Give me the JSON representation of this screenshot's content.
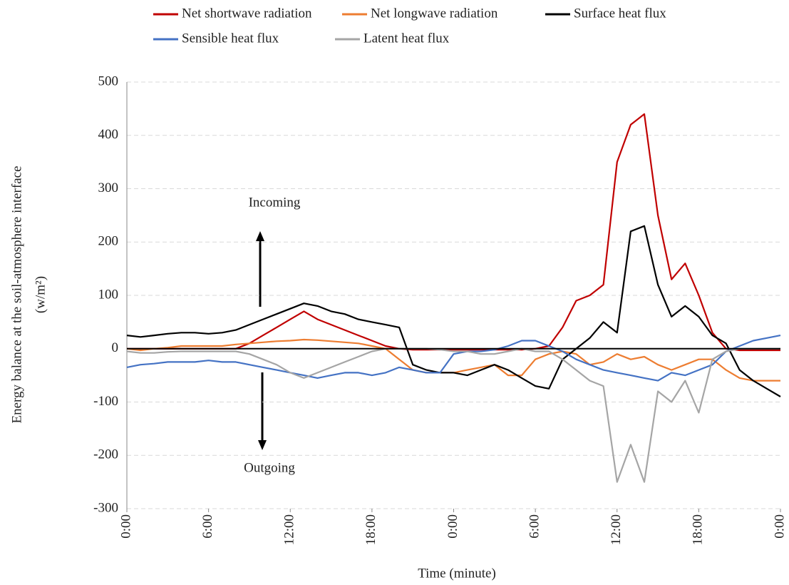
{
  "chart_data": {
    "type": "line",
    "x_label": "Time (minute)",
    "y_label": "Energy balance at the soil-atmosphere interface",
    "y_unit": "(w/m²)",
    "annotations": [
      "Incoming",
      "Outgoing"
    ],
    "x": [
      0,
      1,
      2,
      3,
      4,
      5,
      6,
      7,
      8,
      9,
      10,
      11,
      12,
      13,
      14,
      15,
      16,
      17,
      18,
      19,
      20,
      21,
      22,
      23,
      24,
      25,
      26,
      27,
      28,
      29,
      30,
      31,
      32,
      33,
      34,
      35,
      36,
      37,
      38,
      39,
      40,
      41,
      42,
      43,
      44,
      45,
      46,
      47,
      48
    ],
    "xlim": [
      0,
      48
    ],
    "xticks": [
      {
        "value": 0,
        "label": "0:00"
      },
      {
        "value": 6,
        "label": "6:00"
      },
      {
        "value": 12,
        "label": "12:00"
      },
      {
        "value": 18,
        "label": "18:00"
      },
      {
        "value": 24,
        "label": "0:00"
      },
      {
        "value": 30,
        "label": "6:00"
      },
      {
        "value": 36,
        "label": "12:00"
      },
      {
        "value": 42,
        "label": "18:00"
      },
      {
        "value": 48,
        "label": "0:00"
      }
    ],
    "ylim": [
      -300,
      500
    ],
    "yticks": [
      -300,
      -200,
      -100,
      0,
      100,
      200,
      300,
      400,
      500
    ],
    "grid": true,
    "series": [
      {
        "name": "Net shortwave radiation",
        "color": "#c00000",
        "values": [
          0,
          0,
          0,
          0,
          0,
          0,
          0,
          0,
          0,
          10,
          25,
          40,
          55,
          70,
          55,
          45,
          35,
          25,
          15,
          5,
          0,
          -2,
          -2,
          -2,
          -2,
          -2,
          -2,
          -2,
          -2,
          -2,
          0,
          5,
          40,
          90,
          100,
          120,
          350,
          420,
          440,
          250,
          130,
          160,
          100,
          30,
          0,
          -3,
          -3,
          -3,
          -3
        ]
      },
      {
        "name": "Net longwave radiation",
        "color": "#ed7d31",
        "values": [
          0,
          -3,
          0,
          2,
          5,
          5,
          5,
          5,
          8,
          10,
          12,
          14,
          15,
          17,
          16,
          14,
          12,
          10,
          5,
          0,
          -20,
          -40,
          -45,
          -45,
          -45,
          -40,
          -35,
          -30,
          -50,
          -50,
          -20,
          -10,
          -5,
          -10,
          -30,
          -25,
          -10,
          -20,
          -15,
          -30,
          -40,
          -30,
          -20,
          -20,
          -40,
          -55,
          -60,
          -60,
          -60
        ]
      },
      {
        "name": "Surface heat flux",
        "color": "#000000",
        "values": [
          25,
          22,
          25,
          28,
          30,
          30,
          28,
          30,
          35,
          45,
          55,
          65,
          75,
          85,
          80,
          70,
          65,
          55,
          50,
          45,
          40,
          -30,
          -40,
          -45,
          -45,
          -50,
          -40,
          -30,
          -40,
          -55,
          -70,
          -75,
          -20,
          0,
          20,
          50,
          30,
          220,
          230,
          120,
          60,
          80,
          60,
          25,
          10,
          -40,
          -60,
          -75,
          -90
        ]
      },
      {
        "name": "Sensible heat flux",
        "color": "#4472c4",
        "values": [
          -35,
          -30,
          -28,
          -25,
          -25,
          -25,
          -22,
          -25,
          -25,
          -30,
          -35,
          -40,
          -45,
          -50,
          -55,
          -50,
          -45,
          -45,
          -50,
          -45,
          -35,
          -40,
          -45,
          -45,
          -10,
          -5,
          -5,
          -2,
          5,
          15,
          15,
          5,
          -5,
          -20,
          -30,
          -40,
          -45,
          -50,
          -55,
          -60,
          -45,
          -50,
          -40,
          -30,
          -5,
          5,
          15,
          20,
          25
        ]
      },
      {
        "name": "Latent heat flux",
        "color": "#a5a5a5",
        "values": [
          -5,
          -8,
          -8,
          -6,
          -5,
          -5,
          -5,
          -5,
          -5,
          -10,
          -20,
          -30,
          -45,
          -55,
          -45,
          -35,
          -25,
          -15,
          -5,
          0,
          0,
          0,
          0,
          -2,
          -5,
          -5,
          -10,
          -10,
          -5,
          0,
          -5,
          -5,
          -20,
          -40,
          -60,
          -70,
          -250,
          -180,
          -250,
          -80,
          -100,
          -60,
          -120,
          -20,
          -5,
          0,
          0,
          0,
          0
        ]
      }
    ]
  }
}
